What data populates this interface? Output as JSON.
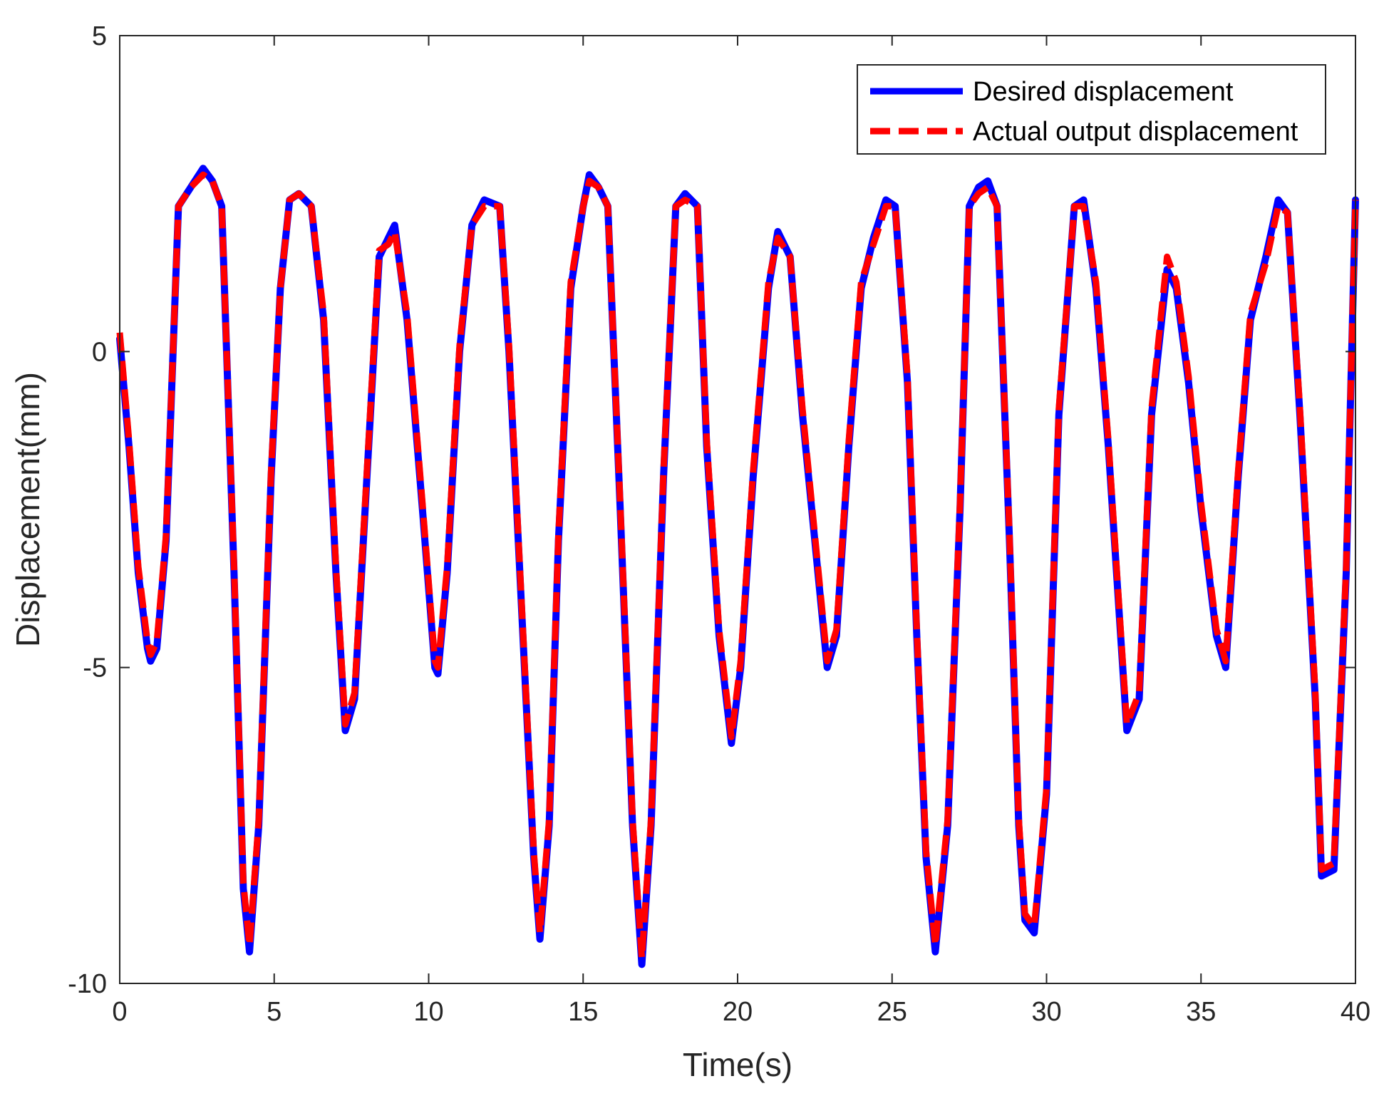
{
  "chart_data": {
    "type": "line",
    "title": "",
    "xlabel": "Time(s)",
    "ylabel": "Displacement(mm)",
    "xlim": [
      0,
      40
    ],
    "ylim": [
      -10,
      5
    ],
    "xticks": [
      0,
      5,
      10,
      15,
      20,
      25,
      30,
      35,
      40
    ],
    "yticks": [
      5,
      0,
      -5,
      -10
    ],
    "xtick_labels": [
      "0",
      "5",
      "10",
      "15",
      "20",
      "25",
      "30",
      "35",
      "40"
    ],
    "ytick_labels": [
      "5",
      "0",
      "-5",
      "-10"
    ],
    "grid": false,
    "legend_position": "top-right",
    "series": [
      {
        "name": "Desired displacement",
        "color": "#0000ff",
        "style": "solid",
        "x": [
          0,
          0.3,
          0.6,
          0.9,
          1.0,
          1.2,
          1.5,
          1.9,
          2.3,
          2.7,
          3.0,
          3.3,
          3.7,
          4.0,
          4.2,
          4.5,
          4.9,
          5.2,
          5.5,
          5.8,
          6.2,
          6.6,
          7.0,
          7.3,
          7.6,
          8.0,
          8.4,
          8.7,
          8.9,
          9.3,
          9.8,
          10.2,
          10.3,
          10.6,
          11.0,
          11.4,
          11.8,
          12.3,
          12.6,
          13.0,
          13.4,
          13.6,
          13.9,
          14.2,
          14.6,
          15.0,
          15.2,
          15.5,
          15.8,
          16.2,
          16.6,
          16.9,
          17.2,
          17.6,
          18.0,
          18.3,
          18.7,
          19.0,
          19.4,
          19.8,
          20.1,
          20.5,
          21.0,
          21.3,
          21.7,
          22.1,
          22.5,
          22.9,
          23.2,
          23.6,
          24.0,
          24.4,
          24.8,
          25.1,
          25.5,
          25.8,
          26.1,
          26.4,
          26.8,
          27.2,
          27.5,
          27.8,
          28.1,
          28.4,
          28.8,
          29.1,
          29.3,
          29.6,
          30.0,
          30.4,
          30.9,
          31.2,
          31.6,
          32.0,
          32.4,
          32.6,
          33.0,
          33.4,
          33.9,
          34.2,
          34.6,
          35.0,
          35.5,
          35.8,
          36.2,
          36.6,
          37.1,
          37.5,
          37.8,
          38.2,
          38.7,
          38.9,
          39.3,
          39.7,
          40.0
        ],
        "y": [
          0.2,
          -1.5,
          -3.5,
          -4.7,
          -4.9,
          -4.7,
          -3.0,
          2.3,
          2.6,
          2.9,
          2.7,
          2.3,
          -3.5,
          -8.5,
          -9.5,
          -7.5,
          -2.0,
          1.0,
          2.4,
          2.5,
          2.3,
          0.5,
          -3.5,
          -6.0,
          -5.5,
          -2.0,
          1.5,
          1.8,
          2.0,
          0.5,
          -2.5,
          -5.0,
          -5.1,
          -3.5,
          0.0,
          2.0,
          2.4,
          2.3,
          0.0,
          -4.0,
          -8.0,
          -9.3,
          -7.5,
          -3.0,
          1.0,
          2.3,
          2.8,
          2.6,
          2.3,
          -2.5,
          -7.5,
          -9.7,
          -7.5,
          -2.0,
          2.3,
          2.5,
          2.3,
          -1.5,
          -4.5,
          -6.2,
          -5.0,
          -2.0,
          1.0,
          1.9,
          1.5,
          -1.0,
          -3.0,
          -5.0,
          -4.5,
          -1.5,
          1.0,
          1.8,
          2.4,
          2.3,
          -0.5,
          -4.5,
          -8.0,
          -9.5,
          -7.5,
          -2.5,
          2.3,
          2.6,
          2.7,
          2.3,
          -3.0,
          -7.5,
          -9.0,
          -9.2,
          -7.0,
          -1.0,
          2.3,
          2.4,
          1.0,
          -1.5,
          -4.5,
          -6.0,
          -5.5,
          -1.0,
          1.3,
          1.0,
          -0.5,
          -2.5,
          -4.5,
          -5.0,
          -2.0,
          0.5,
          1.5,
          2.4,
          2.2,
          -1.0,
          -5.5,
          -8.3,
          -8.2,
          -3.5,
          2.4
        ]
      },
      {
        "name": "Actual output displacement",
        "color": "#ff0000",
        "style": "dashed",
        "x": [
          0,
          0.3,
          0.6,
          0.9,
          1.0,
          1.2,
          1.5,
          1.9,
          2.3,
          2.7,
          3.0,
          3.3,
          3.7,
          4.0,
          4.2,
          4.5,
          4.9,
          5.2,
          5.5,
          5.8,
          6.2,
          6.6,
          7.0,
          7.3,
          7.6,
          8.0,
          8.4,
          8.7,
          8.9,
          9.3,
          9.8,
          10.2,
          10.3,
          10.6,
          11.0,
          11.4,
          11.8,
          12.3,
          12.6,
          13.0,
          13.4,
          13.6,
          13.9,
          14.2,
          14.6,
          15.0,
          15.2,
          15.5,
          15.8,
          16.2,
          16.6,
          16.9,
          17.2,
          17.6,
          18.0,
          18.3,
          18.7,
          19.0,
          19.4,
          19.8,
          20.1,
          20.5,
          21.0,
          21.3,
          21.7,
          22.1,
          22.5,
          22.9,
          23.2,
          23.6,
          24.0,
          24.4,
          24.8,
          25.1,
          25.5,
          25.8,
          26.1,
          26.4,
          26.8,
          27.2,
          27.5,
          27.8,
          28.1,
          28.4,
          28.8,
          29.1,
          29.3,
          29.6,
          30.0,
          30.4,
          30.9,
          31.2,
          31.6,
          32.0,
          32.4,
          32.6,
          33.0,
          33.4,
          33.9,
          34.2,
          34.6,
          35.0,
          35.5,
          35.8,
          36.2,
          36.6,
          37.1,
          37.5,
          37.8,
          38.2,
          38.7,
          38.9,
          39.3,
          39.7,
          40.0
        ],
        "y": [
          0.3,
          -1.4,
          -3.4,
          -4.6,
          -4.8,
          -4.6,
          -2.9,
          2.3,
          2.6,
          2.8,
          2.7,
          2.3,
          -3.4,
          -8.4,
          -9.4,
          -7.4,
          -1.9,
          1.0,
          2.4,
          2.5,
          2.3,
          0.6,
          -3.4,
          -5.9,
          -5.4,
          -1.9,
          1.6,
          1.7,
          1.9,
          0.6,
          -2.4,
          -4.9,
          -5.0,
          -3.4,
          0.1,
          2.0,
          2.3,
          2.3,
          0.1,
          -3.9,
          -7.9,
          -9.2,
          -7.4,
          -2.9,
          1.1,
          2.3,
          2.7,
          2.6,
          2.3,
          -2.4,
          -7.4,
          -9.6,
          -7.4,
          -1.9,
          2.3,
          2.4,
          2.3,
          -1.4,
          -4.4,
          -6.1,
          -4.9,
          -1.9,
          1.1,
          1.8,
          1.5,
          -0.9,
          -2.9,
          -4.9,
          -4.4,
          -1.4,
          1.1,
          1.7,
          2.3,
          2.3,
          -0.4,
          -4.4,
          -7.9,
          -9.4,
          -7.4,
          -2.4,
          2.3,
          2.5,
          2.6,
          2.3,
          -2.9,
          -7.4,
          -8.9,
          -9.1,
          -6.9,
          -0.9,
          2.3,
          2.3,
          1.1,
          -1.4,
          -4.4,
          -5.9,
          -5.4,
          -0.9,
          1.5,
          1.1,
          -0.4,
          -2.4,
          -4.4,
          -4.9,
          -1.9,
          0.6,
          1.4,
          2.3,
          2.2,
          -0.9,
          -5.4,
          -8.2,
          -8.1,
          -3.4,
          2.4
        ]
      }
    ]
  }
}
